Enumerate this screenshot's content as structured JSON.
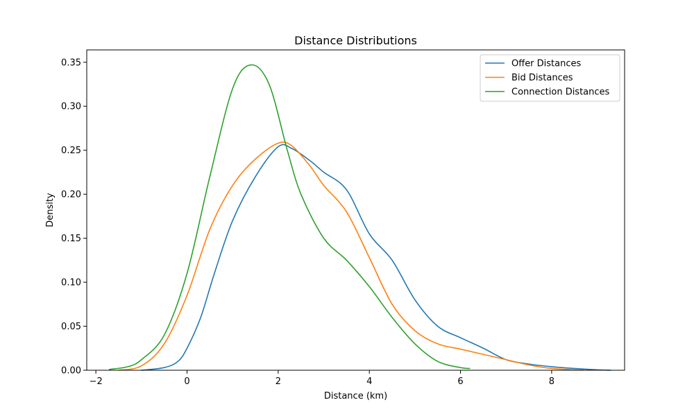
{
  "chart_data": {
    "type": "line",
    "title": "Distance Distributions",
    "xlabel": "Distance (km)",
    "ylabel": "Density",
    "xlim": [
      -2.2,
      9.6
    ],
    "ylim": [
      0,
      0.364
    ],
    "x_ticks": [
      -2,
      0,
      2,
      4,
      6,
      8
    ],
    "x_tick_labels": [
      "−2",
      "0",
      "2",
      "4",
      "6",
      "8"
    ],
    "y_ticks": [
      0,
      0.05,
      0.1,
      0.15,
      0.2,
      0.25,
      0.3,
      0.35
    ],
    "y_tick_labels": [
      "0.00",
      "0.05",
      "0.10",
      "0.15",
      "0.20",
      "0.25",
      "0.30",
      "0.35"
    ],
    "grid": false,
    "legend_position": "top-right",
    "series": [
      {
        "name": "Offer Distances",
        "color": "#1f77b4",
        "points": [
          [
            -1.0,
            0.0
          ],
          [
            -0.5,
            0.003
          ],
          [
            -0.2,
            0.01
          ],
          [
            0.0,
            0.025
          ],
          [
            0.3,
            0.06
          ],
          [
            0.6,
            0.11
          ],
          [
            1.0,
            0.17
          ],
          [
            1.5,
            0.22
          ],
          [
            2.0,
            0.254
          ],
          [
            2.3,
            0.252
          ],
          [
            2.7,
            0.238
          ],
          [
            3.0,
            0.225
          ],
          [
            3.5,
            0.205
          ],
          [
            4.0,
            0.155
          ],
          [
            4.5,
            0.125
          ],
          [
            5.0,
            0.08
          ],
          [
            5.5,
            0.05
          ],
          [
            6.0,
            0.037
          ],
          [
            6.5,
            0.025
          ],
          [
            7.0,
            0.012
          ],
          [
            7.5,
            0.007
          ],
          [
            8.0,
            0.004
          ],
          [
            8.5,
            0.002
          ],
          [
            9.0,
            0.0005
          ],
          [
            9.3,
            0.0
          ]
        ]
      },
      {
        "name": "Bid Distances",
        "color": "#ff7f0e",
        "points": [
          [
            -1.5,
            0.0
          ],
          [
            -1.0,
            0.005
          ],
          [
            -0.5,
            0.03
          ],
          [
            0.0,
            0.085
          ],
          [
            0.5,
            0.16
          ],
          [
            1.0,
            0.21
          ],
          [
            1.5,
            0.24
          ],
          [
            2.0,
            0.258
          ],
          [
            2.3,
            0.255
          ],
          [
            2.7,
            0.232
          ],
          [
            3.0,
            0.21
          ],
          [
            3.5,
            0.18
          ],
          [
            4.0,
            0.128
          ],
          [
            4.5,
            0.075
          ],
          [
            5.0,
            0.045
          ],
          [
            5.5,
            0.03
          ],
          [
            6.0,
            0.024
          ],
          [
            6.5,
            0.018
          ],
          [
            7.0,
            0.012
          ],
          [
            7.5,
            0.006
          ],
          [
            8.0,
            0.002
          ],
          [
            8.7,
            0.0
          ]
        ]
      },
      {
        "name": "Connection Distances",
        "color": "#2ca02c",
        "points": [
          [
            -1.7,
            0.001
          ],
          [
            -1.3,
            0.004
          ],
          [
            -1.0,
            0.012
          ],
          [
            -0.5,
            0.04
          ],
          [
            0.0,
            0.11
          ],
          [
            0.5,
            0.22
          ],
          [
            1.0,
            0.32
          ],
          [
            1.4,
            0.347
          ],
          [
            1.8,
            0.325
          ],
          [
            2.2,
            0.25
          ],
          [
            2.5,
            0.2
          ],
          [
            3.0,
            0.15
          ],
          [
            3.5,
            0.125
          ],
          [
            4.0,
            0.095
          ],
          [
            4.5,
            0.06
          ],
          [
            5.0,
            0.03
          ],
          [
            5.5,
            0.01
          ],
          [
            6.0,
            0.003
          ],
          [
            6.2,
            0.002
          ]
        ]
      }
    ]
  }
}
